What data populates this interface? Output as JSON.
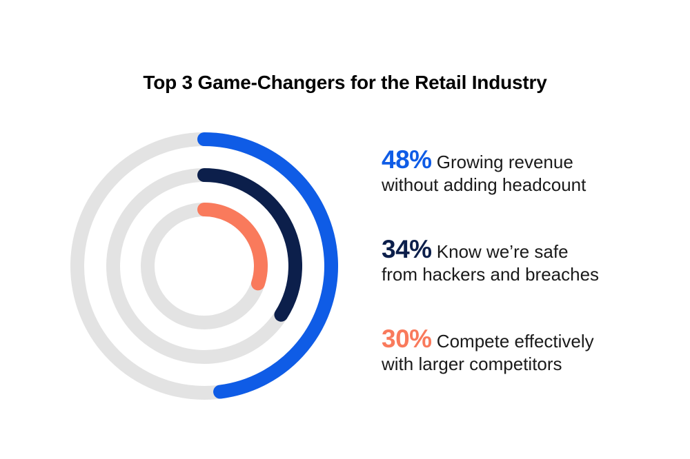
{
  "chart_data": {
    "type": "radial_bar",
    "title": "Top 3 Game-Changers for the Retail Industry",
    "unit": "%",
    "max": 100,
    "series": [
      {
        "value": 48,
        "value_label": "48%",
        "label_line1": "Growing revenue",
        "label_line2": "without adding headcount",
        "color": "#0f5ce6"
      },
      {
        "value": 34,
        "value_label": "34%",
        "label_line1": "Know we’re safe",
        "label_line2": "from hackers and breaches",
        "color": "#0c1f4b"
      },
      {
        "value": 30,
        "value_label": "30%",
        "label_line1": "Compete effectively",
        "label_line2": "with larger competitors",
        "color": "#f97a5c"
      }
    ],
    "track_color": "#e3e3e3"
  }
}
